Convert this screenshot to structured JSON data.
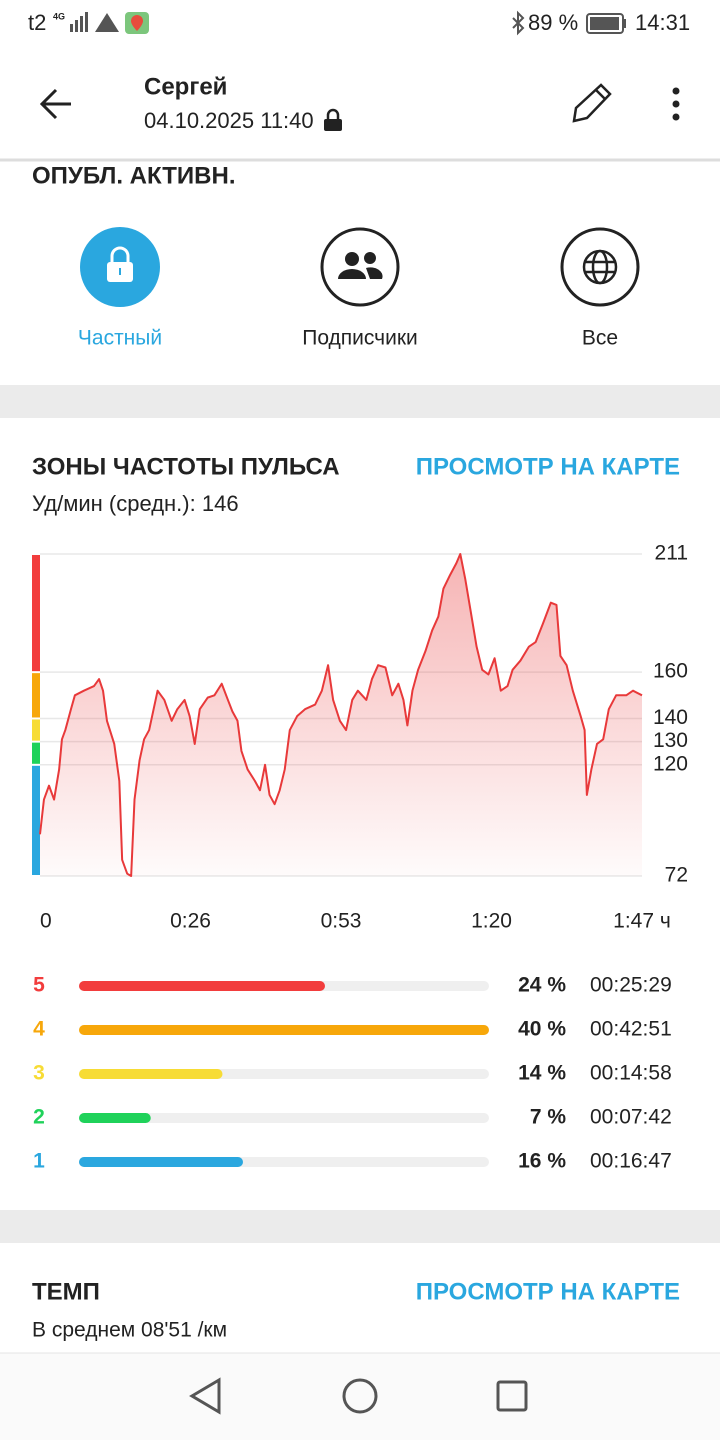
{
  "status_bar": {
    "carrier": "t2",
    "network": "4G",
    "battery": "89 %",
    "time": "14:31"
  },
  "header": {
    "name": "Сергей",
    "datetime": "04.10.2025 11:40"
  },
  "privacy": {
    "title": "ОПУБЛ. АКТИВН.",
    "options": [
      "Частный",
      "Подписчики",
      "Все"
    ]
  },
  "hr_link": "ПРОСМОТР НА КАРТЕ",
  "chart_data": [
    {
      "type": "line",
      "title": "ЗОНЫ ЧАСТОТЫ ПУЛЬСА",
      "subtitle": "Уд/мин (средн.): 146",
      "color": "#e8393a",
      "x": [
        0,
        0.7,
        1.6,
        2.5,
        3.4,
        3.9,
        4.5,
        5.5,
        6.2,
        7.8,
        9.6,
        10.5,
        11.2,
        11.9,
        13.2,
        14.1,
        14.6,
        15.5,
        16.2,
        16.8,
        17.7,
        18.5,
        19.4,
        20.9,
        22.1,
        23.4,
        24.4,
        25.7,
        26.6,
        27.5,
        28.4,
        29.8,
        31.0,
        32.3,
        33.4,
        34.2,
        35.1,
        35.8,
        36.9,
        38.2,
        39.1,
        40.0,
        40.8,
        41.7,
        42.6,
        43.5,
        44.4,
        45.7,
        47.1,
        48.9,
        50.1,
        51.2,
        52.1,
        53.3,
        54.4,
        55.5,
        56.5,
        58.0,
        59.0,
        60.1,
        61.4,
        62.6,
        63.7,
        64.6,
        65.3,
        66.2,
        67.2,
        68.5,
        69.7,
        70.8,
        71.7,
        72.9,
        74.0,
        74.7,
        75.6,
        76.5,
        77.6,
        78.6,
        79.7,
        80.8,
        81.9,
        83.1,
        84.0,
        85.4,
        86.9,
        88.1,
        89.4,
        90.8,
        91.8,
        92.5,
        93.6,
        94.7,
        96.1,
        96.8,
        97.2,
        98.0,
        99.0,
        100.1,
        101.1,
        102.4,
        104.2,
        105.4,
        107
      ],
      "values": [
        90,
        105,
        111,
        105,
        118,
        131,
        135,
        144,
        150,
        152,
        154,
        157,
        152,
        139,
        129,
        113,
        79,
        73,
        72,
        105,
        122,
        131,
        135,
        152,
        148,
        139,
        144,
        148,
        141,
        129,
        144,
        149,
        150,
        155,
        148,
        143,
        139,
        126,
        118,
        113,
        109,
        120,
        107,
        103,
        109,
        118,
        135,
        141,
        144,
        146,
        152,
        163,
        148,
        139,
        135,
        148,
        152,
        148,
        157,
        163,
        162,
        150,
        155,
        148,
        137,
        152,
        161,
        169,
        178,
        184,
        196,
        202,
        207,
        211,
        200,
        187,
        171,
        161,
        159,
        166,
        152,
        154,
        161,
        165,
        171,
        173,
        181,
        190,
        189,
        167,
        163,
        152,
        141,
        135,
        107,
        118,
        129,
        131,
        144,
        150,
        150,
        152,
        150
      ],
      "xlim": [
        0,
        107
      ],
      "ylim": [
        72,
        211
      ],
      "xticks": [
        0,
        {
          "value": 26.75,
          "label": "0:26"
        },
        {
          "value": 53.5,
          "label": "0:53"
        },
        {
          "value": 80.25,
          "label": "1:20"
        },
        {
          "value": 107,
          "label": "1:47 ч"
        }
      ],
      "yticks": [
        72,
        120,
        130,
        140,
        160,
        211
      ],
      "grid": true,
      "bands": [
        {
          "from": 160,
          "to": 211,
          "color": "#f23d3d"
        },
        {
          "from": 140,
          "to": 160,
          "color": "#f7a70a"
        },
        {
          "from": 130,
          "to": 140,
          "color": "#f7dc35"
        },
        {
          "from": 120,
          "to": 130,
          "color": "#1fd25a"
        },
        {
          "from": 72,
          "to": 120,
          "color": "#2aa7df"
        }
      ]
    },
    {
      "type": "hbar",
      "categories": [
        "5",
        "4",
        "3",
        "2",
        "1"
      ],
      "values": [
        24,
        40,
        14,
        7,
        16
      ],
      "value_labels": [
        "24 %",
        "40 %",
        "14 %",
        "7 %",
        "16 %"
      ],
      "durations": [
        "00:25:29",
        "00:42:51",
        "00:14:58",
        "00:07:42",
        "00:16:47"
      ],
      "colors": [
        "#f23d3d",
        "#f7a70a",
        "#f7dc35",
        "#1fd25a",
        "#2aa7df"
      ]
    }
  ],
  "pace": {
    "title": "ТЕМП",
    "link": "ПРОСМОТР НА КАРТЕ",
    "subtitle": "В среднем 08'51 /км"
  }
}
